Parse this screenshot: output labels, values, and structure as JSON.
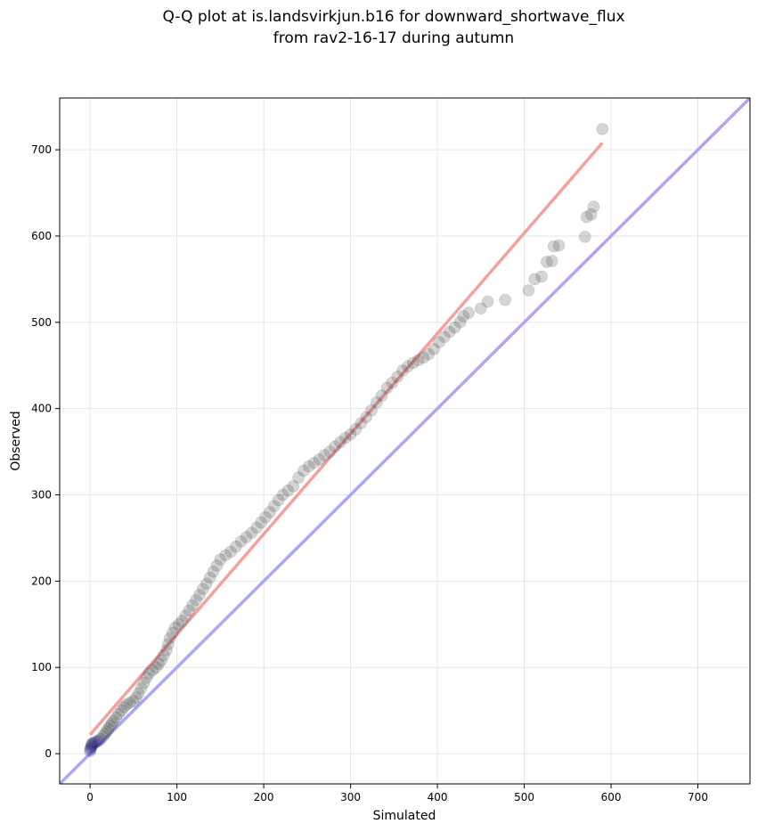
{
  "chart_data": {
    "type": "scatter",
    "title_lines": [
      "Q-Q plot at is.landsvirkjun.b16 for downward_shortwave_flux",
      "from rav2-16-17 during autumn"
    ],
    "xlabel": "Simulated",
    "ylabel": "Observed",
    "xlim": [
      -35,
      760
    ],
    "ylim": [
      -35,
      760
    ],
    "xticks": [
      0,
      100,
      200,
      300,
      400,
      500,
      600,
      700
    ],
    "yticks": [
      0,
      100,
      200,
      300,
      400,
      500,
      600,
      700
    ],
    "grid": true,
    "colors": {
      "points": "#404040",
      "fit_line": "#f4a0a0",
      "identity_line": "#a8a8f4",
      "grid": "#e6e6e6",
      "low_points": "#1a1a6e"
    },
    "reference_lines": [
      {
        "kind": "fit",
        "x": [
          0,
          590
        ],
        "y": [
          22,
          708
        ]
      },
      {
        "kind": "identity",
        "x": [
          -35,
          760
        ],
        "y": [
          -35,
          760
        ]
      }
    ],
    "quantiles": [
      [
        0,
        3
      ],
      [
        0.5,
        5
      ],
      [
        1,
        7
      ],
      [
        1.5,
        9
      ],
      [
        2,
        11
      ],
      [
        3,
        12
      ],
      [
        5,
        13
      ],
      [
        7,
        14
      ],
      [
        10,
        15
      ],
      [
        12,
        17
      ],
      [
        15,
        20
      ],
      [
        17,
        23
      ],
      [
        19,
        26
      ],
      [
        21,
        29
      ],
      [
        23,
        32
      ],
      [
        25,
        35
      ],
      [
        27,
        38
      ],
      [
        30,
        42
      ],
      [
        33,
        46
      ],
      [
        36,
        50
      ],
      [
        39,
        54
      ],
      [
        42,
        57
      ],
      [
        46,
        59
      ],
      [
        50,
        61
      ],
      [
        53,
        65
      ],
      [
        56,
        70
      ],
      [
        59,
        76
      ],
      [
        62,
        82
      ],
      [
        65,
        88
      ],
      [
        68,
        93
      ],
      [
        72,
        97
      ],
      [
        76,
        100
      ],
      [
        79,
        104
      ],
      [
        82,
        108
      ],
      [
        85,
        114
      ],
      [
        88,
        120
      ],
      [
        90,
        127
      ],
      [
        92,
        134
      ],
      [
        95,
        140
      ],
      [
        98,
        146
      ],
      [
        102,
        150
      ],
      [
        106,
        154
      ],
      [
        110,
        160
      ],
      [
        114,
        166
      ],
      [
        118,
        172
      ],
      [
        122,
        178
      ],
      [
        126,
        184
      ],
      [
        130,
        191
      ],
      [
        134,
        197
      ],
      [
        138,
        204
      ],
      [
        142,
        211
      ],
      [
        146,
        218
      ],
      [
        150,
        225
      ],
      [
        156,
        230
      ],
      [
        162,
        234
      ],
      [
        168,
        240
      ],
      [
        174,
        246
      ],
      [
        180,
        251
      ],
      [
        186,
        256
      ],
      [
        192,
        262
      ],
      [
        197,
        268
      ],
      [
        202,
        274
      ],
      [
        207,
        280
      ],
      [
        212,
        287
      ],
      [
        217,
        294
      ],
      [
        222,
        300
      ],
      [
        228,
        305
      ],
      [
        234,
        310
      ],
      [
        240,
        320
      ],
      [
        246,
        328
      ],
      [
        252,
        333
      ],
      [
        258,
        337
      ],
      [
        264,
        341
      ],
      [
        270,
        346
      ],
      [
        276,
        350
      ],
      [
        282,
        356
      ],
      [
        288,
        361
      ],
      [
        294,
        366
      ],
      [
        300,
        370
      ],
      [
        306,
        376
      ],
      [
        312,
        383
      ],
      [
        318,
        390
      ],
      [
        324,
        398
      ],
      [
        330,
        407
      ],
      [
        336,
        415
      ],
      [
        342,
        424
      ],
      [
        348,
        430
      ],
      [
        354,
        437
      ],
      [
        360,
        444
      ],
      [
        366,
        449
      ],
      [
        372,
        453
      ],
      [
        378,
        456
      ],
      [
        384,
        459
      ],
      [
        390,
        463
      ],
      [
        396,
        469
      ],
      [
        402,
        477
      ],
      [
        408,
        483
      ],
      [
        414,
        489
      ],
      [
        420,
        494
      ],
      [
        426,
        500
      ],
      [
        430,
        507
      ],
      [
        436,
        511
      ],
      [
        450,
        516
      ],
      [
        458,
        524
      ],
      [
        478,
        526
      ],
      [
        505,
        537
      ],
      [
        512,
        550
      ],
      [
        520,
        553
      ],
      [
        526,
        570
      ],
      [
        532,
        571
      ],
      [
        534,
        588
      ],
      [
        540,
        589
      ],
      [
        570,
        599
      ],
      [
        572,
        622
      ],
      [
        577,
        625
      ],
      [
        580,
        634
      ],
      [
        590,
        724
      ]
    ]
  }
}
